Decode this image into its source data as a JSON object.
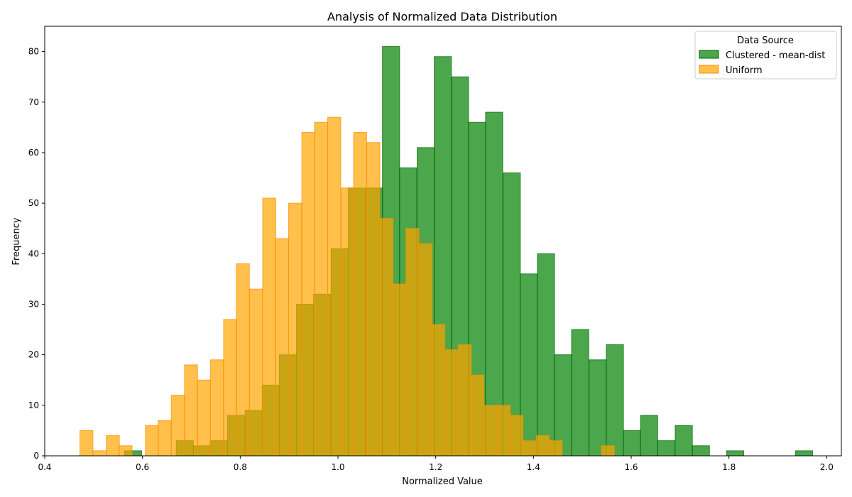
{
  "chart_data": {
    "type": "bar",
    "title": "Analysis of Normalized Data Distribution",
    "xlabel": "Normalized Value",
    "ylabel": "Frequency",
    "xlim": [
      0.4,
      2.03
    ],
    "ylim": [
      0,
      85
    ],
    "xticks": [
      "0.4",
      "0.6",
      "0.8",
      "1.0",
      "1.2",
      "1.4",
      "1.6",
      "1.8",
      "2.0"
    ],
    "yticks": [
      "0",
      "10",
      "20",
      "30",
      "40",
      "50",
      "60",
      "70",
      "80"
    ],
    "grid": false,
    "legend": {
      "title": "Data Source",
      "placement": "top-right"
    },
    "series": [
      {
        "name": "Clustered - mean-dist",
        "color": "#008000",
        "edge_color": "#006400",
        "opacity": 0.7,
        "bin_width": 0.0352,
        "bins": [
          {
            "x": 0.563,
            "value": 1
          },
          {
            "x": 0.669,
            "value": 3
          },
          {
            "x": 0.704,
            "value": 2
          },
          {
            "x": 0.739,
            "value": 3
          },
          {
            "x": 0.774,
            "value": 8
          },
          {
            "x": 0.81,
            "value": 9
          },
          {
            "x": 0.845,
            "value": 14
          },
          {
            "x": 0.88,
            "value": 20
          },
          {
            "x": 0.915,
            "value": 30
          },
          {
            "x": 0.95,
            "value": 32
          },
          {
            "x": 0.986,
            "value": 41
          },
          {
            "x": 1.021,
            "value": 53
          },
          {
            "x": 1.056,
            "value": 53
          },
          {
            "x": 1.091,
            "value": 81
          },
          {
            "x": 1.126,
            "value": 57
          },
          {
            "x": 1.162,
            "value": 61
          },
          {
            "x": 1.197,
            "value": 79
          },
          {
            "x": 1.232,
            "value": 75
          },
          {
            "x": 1.267,
            "value": 66
          },
          {
            "x": 1.302,
            "value": 68
          },
          {
            "x": 1.338,
            "value": 56
          },
          {
            "x": 1.373,
            "value": 36
          },
          {
            "x": 1.408,
            "value": 40
          },
          {
            "x": 1.443,
            "value": 20
          },
          {
            "x": 1.478,
            "value": 25
          },
          {
            "x": 1.514,
            "value": 19
          },
          {
            "x": 1.549,
            "value": 22
          },
          {
            "x": 1.584,
            "value": 5
          },
          {
            "x": 1.619,
            "value": 8
          },
          {
            "x": 1.654,
            "value": 3
          },
          {
            "x": 1.69,
            "value": 6
          },
          {
            "x": 1.725,
            "value": 2
          },
          {
            "x": 1.795,
            "value": 1
          },
          {
            "x": 1.936,
            "value": 1
          }
        ]
      },
      {
        "name": "Uniform",
        "color": "#FFA500",
        "edge_color": "#FF8C00",
        "opacity": 0.7,
        "bin_width": 0.0267,
        "bins": [
          {
            "x": 0.472,
            "value": 5
          },
          {
            "x": 0.499,
            "value": 1
          },
          {
            "x": 0.526,
            "value": 4
          },
          {
            "x": 0.552,
            "value": 2
          },
          {
            "x": 0.606,
            "value": 6
          },
          {
            "x": 0.632,
            "value": 7
          },
          {
            "x": 0.659,
            "value": 12
          },
          {
            "x": 0.686,
            "value": 18
          },
          {
            "x": 0.712,
            "value": 15
          },
          {
            "x": 0.739,
            "value": 19
          },
          {
            "x": 0.766,
            "value": 27
          },
          {
            "x": 0.792,
            "value": 38
          },
          {
            "x": 0.819,
            "value": 33
          },
          {
            "x": 0.846,
            "value": 51
          },
          {
            "x": 0.872,
            "value": 43
          },
          {
            "x": 0.899,
            "value": 50
          },
          {
            "x": 0.926,
            "value": 64
          },
          {
            "x": 0.952,
            "value": 66
          },
          {
            "x": 0.979,
            "value": 67
          },
          {
            "x": 1.006,
            "value": 53
          },
          {
            "x": 1.032,
            "value": 64
          },
          {
            "x": 1.059,
            "value": 62
          },
          {
            "x": 1.086,
            "value": 47
          },
          {
            "x": 1.112,
            "value": 34
          },
          {
            "x": 1.139,
            "value": 45
          },
          {
            "x": 1.166,
            "value": 42
          },
          {
            "x": 1.192,
            "value": 26
          },
          {
            "x": 1.219,
            "value": 21
          },
          {
            "x": 1.246,
            "value": 22
          },
          {
            "x": 1.272,
            "value": 16
          },
          {
            "x": 1.299,
            "value": 10
          },
          {
            "x": 1.326,
            "value": 10
          },
          {
            "x": 1.352,
            "value": 8
          },
          {
            "x": 1.379,
            "value": 3
          },
          {
            "x": 1.406,
            "value": 4
          },
          {
            "x": 1.432,
            "value": 3
          },
          {
            "x": 1.539,
            "value": 2
          }
        ]
      }
    ]
  }
}
